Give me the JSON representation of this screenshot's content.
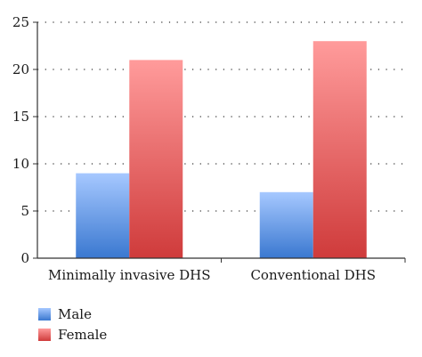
{
  "chart_data": {
    "type": "bar",
    "categories": [
      "Minimally invasive DHS",
      "Conventional DHS"
    ],
    "series": [
      {
        "name": "Male",
        "values": [
          9,
          7
        ],
        "color": "#6a9be0"
      },
      {
        "name": "Female",
        "values": [
          21,
          23
        ],
        "color": "#e06a6a"
      }
    ],
    "ylim": [
      0,
      25
    ],
    "yticks": [
      "0",
      "5",
      "10",
      "15",
      "20",
      "25"
    ],
    "grid": "dotted-horizontal",
    "legend_position": "bottom-left"
  }
}
